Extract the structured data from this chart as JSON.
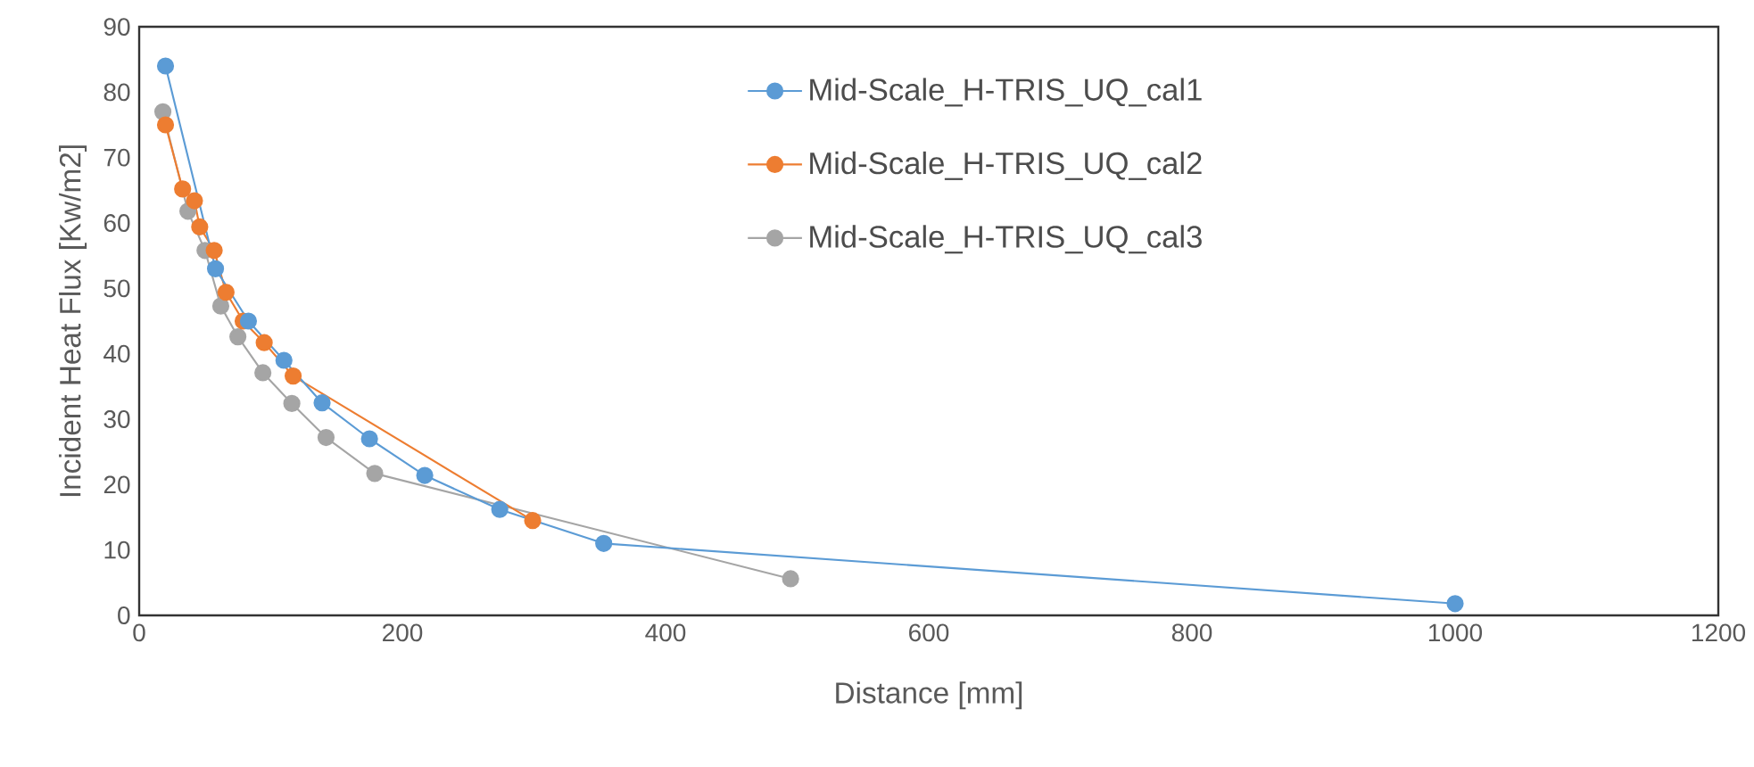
{
  "chart_data": {
    "type": "line",
    "xlabel": "Distance [mm]",
    "ylabel": "Incident Heat Flux [Kw/m2]",
    "xlim": [
      0,
      1200
    ],
    "xticks": [
      0,
      200,
      400,
      600,
      800,
      1000,
      1200
    ],
    "ylim": [
      0,
      90
    ],
    "yticks": [
      0,
      10,
      20,
      30,
      40,
      50,
      60,
      70,
      80,
      90
    ],
    "grid": false,
    "legend": "top right",
    "marker": "circle",
    "line_style": "solid",
    "series": [
      {
        "name": "Mid-Scale_H-TRIS_UQ_cal1",
        "color": "#5b9bd5",
        "x": [
          20,
          58,
          83,
          110,
          139,
          175,
          217,
          274,
          353,
          1000
        ],
        "values": [
          84,
          53,
          45,
          39,
          32.5,
          27,
          21.4,
          16.2,
          11,
          1.8
        ]
      },
      {
        "name": "Mid-Scale_H-TRIS_UQ_cal2",
        "color": "#ed7d31",
        "x": [
          20,
          33,
          42,
          46,
          57,
          66,
          79,
          95,
          117,
          299
        ],
        "values": [
          75,
          65.2,
          63.4,
          59.4,
          55.8,
          49.4,
          45,
          41.7,
          36.6,
          14.5
        ]
      },
      {
        "name": "Mid-Scale_H-TRIS_UQ_cal3",
        "color": "#a5a5a5",
        "x": [
          18,
          37,
          50,
          62,
          75,
          94,
          116,
          142,
          179,
          495
        ],
        "values": [
          77,
          61.8,
          55.8,
          47.3,
          42.6,
          37.1,
          32.4,
          27.2,
          21.7,
          5.6
        ]
      }
    ]
  }
}
